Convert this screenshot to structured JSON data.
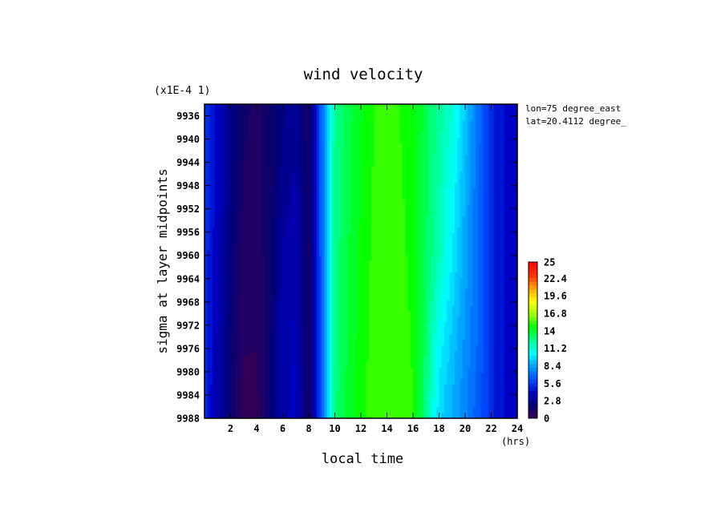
{
  "chart_data": {
    "type": "heatmap",
    "title": "wind velocity",
    "xlabel": "local time",
    "x_unit": "(hrs)",
    "ylabel": "sigma at layer midpoints",
    "y_scale_note": "(x1E-4 1)",
    "annotations": [
      "lon=75 degree_east",
      "lat=20.4112 degree_"
    ],
    "xlim": [
      0,
      24
    ],
    "ylim": [
      9988,
      9934
    ],
    "x_ticks": [
      2,
      4,
      6,
      8,
      10,
      12,
      14,
      16,
      18,
      20,
      22,
      24
    ],
    "x_tick_labels": [
      "2",
      "4",
      "6",
      "8",
      "10",
      "12",
      "14",
      "16",
      "18",
      "20",
      "22",
      "24"
    ],
    "y_ticks": [
      9936,
      9940,
      9944,
      9948,
      9952,
      9956,
      9960,
      9964,
      9968,
      9972,
      9976,
      9980,
      9984,
      9988
    ],
    "y_tick_labels": [
      "9936",
      "9940",
      "9944",
      "9948",
      "9952",
      "9956",
      "9960",
      "9964",
      "9968",
      "9972",
      "9976",
      "9980",
      "9984",
      "9988"
    ],
    "colorbar": {
      "min": 0,
      "max": 25,
      "tick_values": [
        0,
        2.8,
        5.6,
        8.4,
        11.2,
        14,
        16.8,
        19.6,
        22.4,
        25
      ],
      "tick_labels": [
        "0",
        "2.8",
        "5.6",
        "8.4",
        "11.2",
        "14",
        "16.8",
        "19.6",
        "22.4",
        "25"
      ],
      "levels": 40,
      "colors": [
        "#3a0050",
        "#000078",
        "#0000c8",
        "#0050ff",
        "#00a0ff",
        "#00ffff",
        "#00ff90",
        "#00ff00",
        "#a0ff00",
        "#ffff00",
        "#ffa000",
        "#ff3000",
        "#ff0000"
      ]
    },
    "x": [
      0,
      1,
      2,
      3,
      4,
      5,
      6,
      7,
      8,
      9,
      10,
      11,
      12,
      13,
      14,
      15,
      16,
      17,
      18,
      19,
      20,
      21,
      22,
      23,
      24
    ],
    "y": [
      9936,
      9948,
      9960,
      9972,
      9984,
      9988
    ],
    "z": [
      [
        5.7,
        4.2,
        2.6,
        1.4,
        1.1,
        1.5,
        2.4,
        2.8,
        1.4,
        6.8,
        12.4,
        13.5,
        14.3,
        15.0,
        15.0,
        15.0,
        14.6,
        13.4,
        12.3,
        11.2,
        9.2,
        7.1,
        5.2,
        4.3,
        4.0
      ],
      [
        5.6,
        4.0,
        2.4,
        1.2,
        1.0,
        1.5,
        2.7,
        3.3,
        1.4,
        6.8,
        12.5,
        13.6,
        14.4,
        15.1,
        15.1,
        15.1,
        14.7,
        13.3,
        12.0,
        10.5,
        8.7,
        7.0,
        5.2,
        4.3,
        4.0
      ],
      [
        5.5,
        3.8,
        2.2,
        1.0,
        0.9,
        1.6,
        3.2,
        3.6,
        1.3,
        6.8,
        12.6,
        13.7,
        14.5,
        15.2,
        15.2,
        15.2,
        14.8,
        13.2,
        11.8,
        10.0,
        8.4,
        6.9,
        5.3,
        4.3,
        4.0
      ],
      [
        5.4,
        3.6,
        2.0,
        0.8,
        0.7,
        1.7,
        3.4,
        3.8,
        1.2,
        6.8,
        12.7,
        13.8,
        14.6,
        15.3,
        15.3,
        15.3,
        14.9,
        13.1,
        10.6,
        9.3,
        8.1,
        6.8,
        5.3,
        4.3,
        4.0
      ],
      [
        5.3,
        3.4,
        1.8,
        0.4,
        0.5,
        1.8,
        3.3,
        4.0,
        1.1,
        6.8,
        12.8,
        13.9,
        14.7,
        15.4,
        15.4,
        15.4,
        15.0,
        12.7,
        9.8,
        8.8,
        7.7,
        6.6,
        5.3,
        4.3,
        4.0
      ],
      [
        5.3,
        3.3,
        1.8,
        0.3,
        0.4,
        1.8,
        3.3,
        4.0,
        1.1,
        6.8,
        12.8,
        13.9,
        14.7,
        15.4,
        15.4,
        15.4,
        15.0,
        12.6,
        9.6,
        8.7,
        7.6,
        6.5,
        5.3,
        4.3,
        4.0
      ]
    ]
  }
}
